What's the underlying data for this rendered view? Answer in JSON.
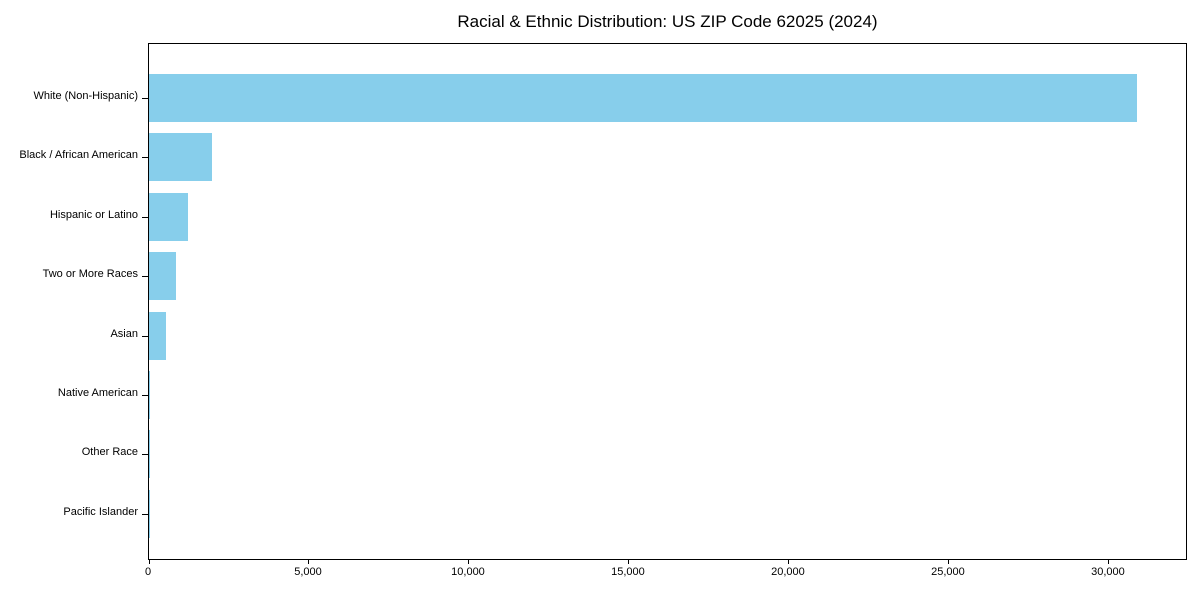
{
  "chart_data": {
    "type": "bar",
    "orientation": "horizontal",
    "title": "Racial & Ethnic Distribution: US ZIP Code 62025 (2024)",
    "categories": [
      "White (Non-Hispanic)",
      "Black / African American",
      "Hispanic or Latino",
      "Two or More Races",
      "Asian",
      "Native American",
      "Other Race",
      "Pacific Islander"
    ],
    "values": [
      30870,
      1970,
      1220,
      845,
      520,
      45,
      20,
      10
    ],
    "bar_color": "#87CEEB",
    "xlabel": "",
    "ylabel": "",
    "xlim": [
      0,
      32470
    ],
    "xticks": [
      0,
      5000,
      10000,
      15000,
      20000,
      25000,
      30000
    ],
    "xtick_labels": [
      "0",
      "5,000",
      "10,000",
      "15,000",
      "20,000",
      "25,000",
      "30,000"
    ],
    "grid": false,
    "legend": null,
    "plot_background": "#ffffff",
    "spine_color": "#000000"
  }
}
